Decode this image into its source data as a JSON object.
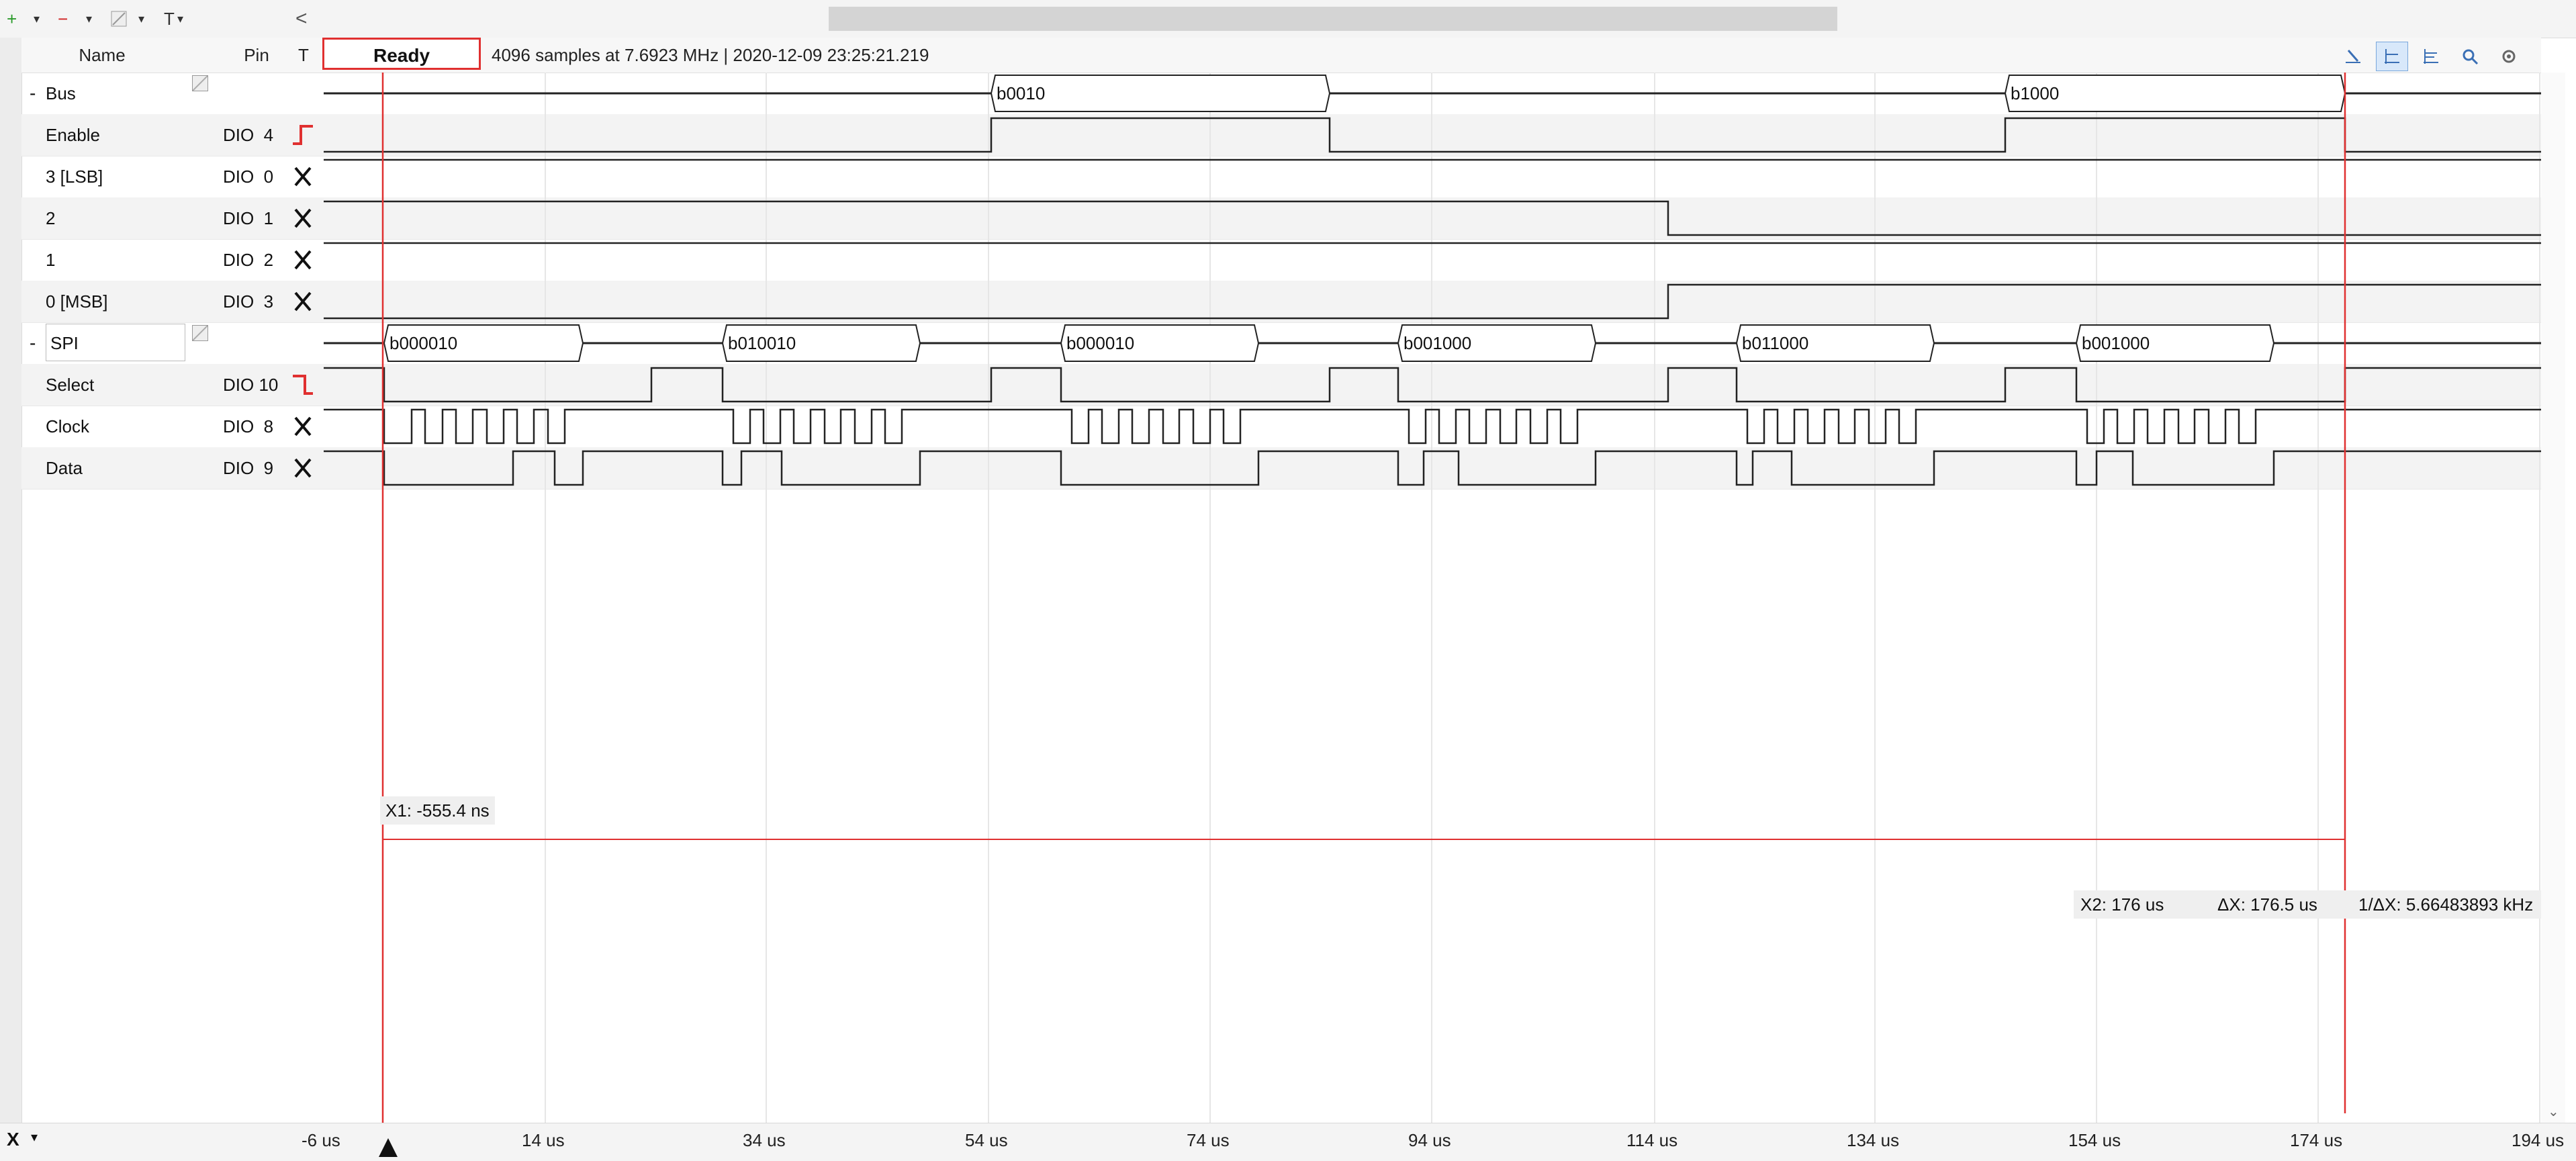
{
  "toolbar": {
    "add_label": "+",
    "remove_label": "−",
    "trigger_label": "T",
    "collapse_label": "<"
  },
  "columns": {
    "name": "Name",
    "pin": "Pin",
    "trigger": "T"
  },
  "status": {
    "state": "Ready",
    "info": "4096 samples at 7.6923 MHz | 2020-12-09 23:25:21.219"
  },
  "right_tools": [
    "cursor-icon",
    "cursor-x-icon",
    "cursor-xy-icon",
    "zoom-icon",
    "settings-icon"
  ],
  "channels": [
    {
      "kind": "bus",
      "name": "Bus",
      "collapse": "-",
      "pin": "",
      "trigger": ""
    },
    {
      "kind": "signal",
      "name": "Enable",
      "pin": "DIO  4",
      "trigger": "rising"
    },
    {
      "kind": "signal",
      "name": "3 [LSB]",
      "pin": "DIO  0",
      "trigger": "x"
    },
    {
      "kind": "signal",
      "name": "2",
      "pin": "DIO  1",
      "trigger": "x"
    },
    {
      "kind": "signal",
      "name": "1",
      "pin": "DIO  2",
      "trigger": "x"
    },
    {
      "kind": "signal",
      "name": "0 [MSB]",
      "pin": "DIO  3",
      "trigger": "x"
    },
    {
      "kind": "bus",
      "name": "SPI",
      "collapse": "-",
      "pin": "",
      "trigger": ""
    },
    {
      "kind": "signal",
      "name": "Select",
      "pin": "DIO 10",
      "trigger": "falling"
    },
    {
      "kind": "signal",
      "name": "Clock",
      "pin": "DIO  8",
      "trigger": "x"
    },
    {
      "kind": "signal",
      "name": "Data",
      "pin": "DIO  9",
      "trigger": "x"
    }
  ],
  "bus_values": [
    "b0010",
    "b1000"
  ],
  "spi_values": [
    "b000010",
    "b010010",
    "b000010",
    "b001000",
    "b011000",
    "b001000"
  ],
  "cursors": {
    "x1": "X1: -555.4 ns",
    "x2": "X2: 176 us",
    "dx": "ΔX: 176.5 us",
    "inv_dx": "1/ΔX: 5.66483893 kHz"
  },
  "time_axis": {
    "x_button": "X",
    "ticks": [
      "-6 us",
      "14 us",
      "34 us",
      "54 us",
      "74 us",
      "94 us",
      "114 us",
      "134 us",
      "154 us",
      "174 us",
      "194 us"
    ]
  },
  "colors": {
    "cursor": "#e03030",
    "trace": "#222222",
    "grid": "#e6e6e6"
  }
}
